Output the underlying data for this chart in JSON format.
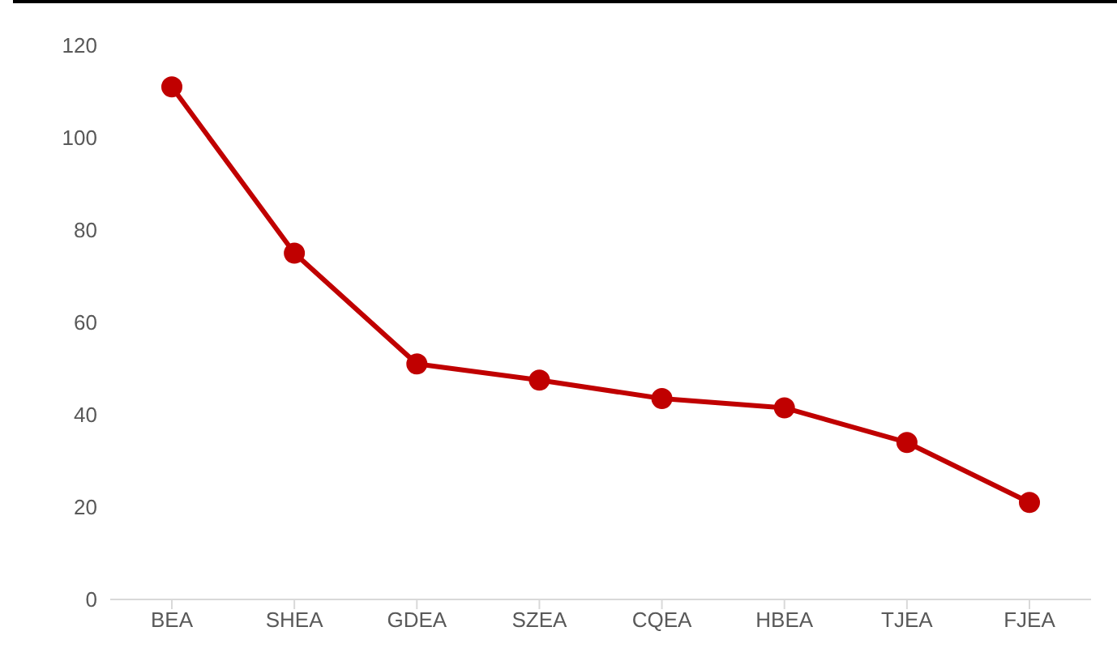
{
  "chart_data": {
    "type": "line",
    "categories": [
      "BEA",
      "SHEA",
      "GDEA",
      "SZEA",
      "CQEA",
      "HBEA",
      "TJEA",
      "FJEA"
    ],
    "series": [
      {
        "color": "#c00000",
        "values": [
          111,
          75,
          51,
          47.5,
          43.5,
          41.5,
          34,
          21
        ]
      }
    ],
    "ylim": [
      0,
      120
    ],
    "yticks": [
      0,
      20,
      40,
      60,
      80,
      100,
      120
    ],
    "grid": false,
    "legend": false,
    "marker": "circle",
    "line_style": "solid"
  }
}
